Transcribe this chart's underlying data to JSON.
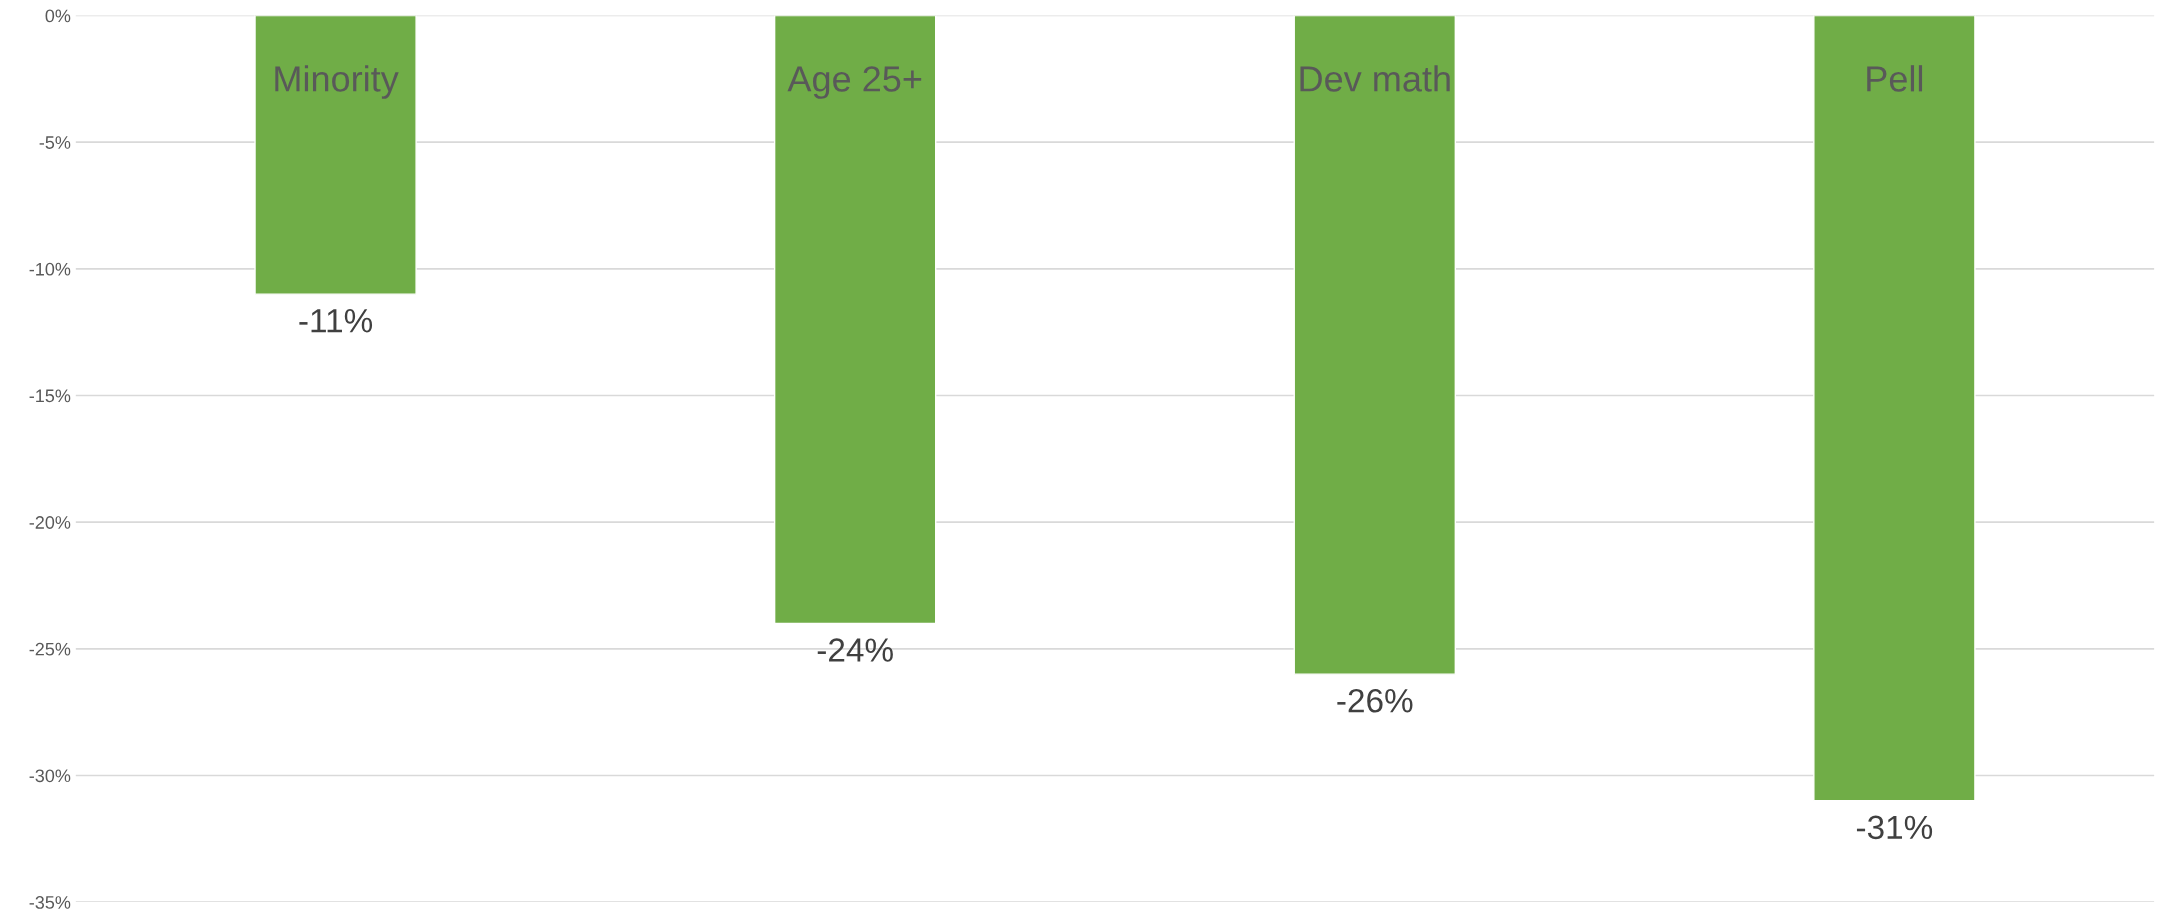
{
  "chart_data": {
    "type": "bar",
    "categories": [
      "Minority",
      "Age 25+",
      "Dev math",
      "Pell"
    ],
    "series": [
      {
        "color": "#70ad47",
        "values": [
          -11,
          -24,
          -26,
          -31
        ],
        "value_labels": [
          "-11%",
          "-24%",
          "-26%",
          "-31%"
        ]
      }
    ],
    "ylim": [
      -35,
      0
    ],
    "yticks": [
      {
        "value": 0,
        "label": "0%"
      },
      {
        "value": -5,
        "label": "-5%"
      },
      {
        "value": -10,
        "label": "-10%"
      },
      {
        "value": -15,
        "label": "-15%"
      },
      {
        "value": -20,
        "label": "-20%"
      },
      {
        "value": -25,
        "label": "-25%"
      },
      {
        "value": -30,
        "label": "-30%"
      },
      {
        "value": -35,
        "label": "-35%"
      }
    ],
    "grid": "y"
  }
}
